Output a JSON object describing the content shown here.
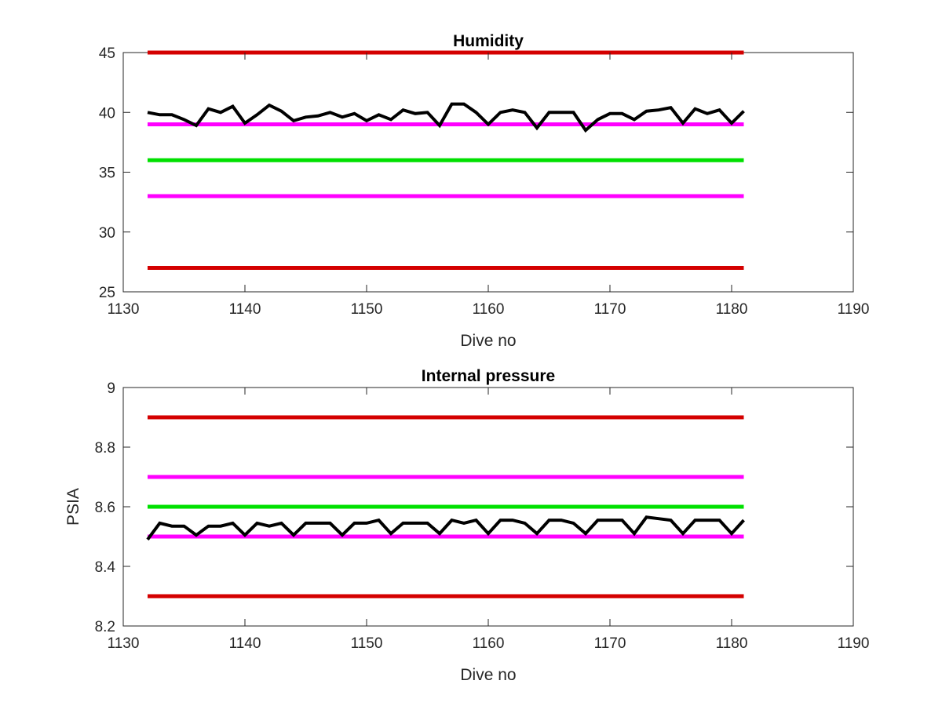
{
  "chart_data": [
    {
      "type": "line",
      "title": "Humidity",
      "xlabel": "Dive no",
      "ylabel": "",
      "xlim": [
        1130,
        1190
      ],
      "ylim": [
        25,
        45
      ],
      "xticks": [
        "1130",
        "1140",
        "1150",
        "1160",
        "1170",
        "1180",
        "1190"
      ],
      "yticks": [
        "25",
        "30",
        "35",
        "40",
        "45"
      ],
      "grid": false,
      "series": [
        {
          "color": "#d40000",
          "x": [
            1132,
            1181
          ],
          "y": [
            45,
            45
          ]
        },
        {
          "color": "#ff00ff",
          "x": [
            1132,
            1181
          ],
          "y": [
            39,
            39
          ]
        },
        {
          "color": "#00e000",
          "x": [
            1132,
            1181
          ],
          "y": [
            36,
            36
          ]
        },
        {
          "color": "#ff00ff",
          "x": [
            1132,
            1181
          ],
          "y": [
            33,
            33
          ]
        },
        {
          "color": "#d40000",
          "x": [
            1132,
            1181
          ],
          "y": [
            27,
            27
          ]
        },
        {
          "color": "#000000",
          "x": [
            1132,
            1133,
            1134,
            1135,
            1136,
            1137,
            1138,
            1139,
            1140,
            1141,
            1142,
            1143,
            1144,
            1145,
            1146,
            1147,
            1148,
            1149,
            1150,
            1151,
            1152,
            1153,
            1154,
            1155,
            1156,
            1157,
            1158,
            1159,
            1160,
            1161,
            1162,
            1163,
            1164,
            1165,
            1166,
            1167,
            1168,
            1169,
            1170,
            1171,
            1172,
            1173,
            1174,
            1175,
            1176,
            1177,
            1178,
            1179,
            1180,
            1181
          ],
          "y": [
            40,
            39.8,
            39.8,
            39.4,
            38.9,
            40.3,
            40,
            40.5,
            39.1,
            39.8,
            40.6,
            40.1,
            39.3,
            39.6,
            39.7,
            40,
            39.6,
            39.9,
            39.3,
            39.8,
            39.4,
            40.2,
            39.9,
            40,
            38.9,
            40.7,
            40.7,
            40,
            39,
            40,
            40.2,
            40,
            38.7,
            40,
            40,
            40,
            38.5,
            39.4,
            39.9,
            39.9,
            39.4,
            40.1,
            40.2,
            40.4,
            39.1,
            40.3,
            39.9,
            40.2,
            39.1,
            40.1
          ]
        }
      ]
    },
    {
      "type": "line",
      "title": "Internal pressure",
      "xlabel": "Dive no",
      "ylabel": "PSIA",
      "xlim": [
        1130,
        1190
      ],
      "ylim": [
        8.2,
        9
      ],
      "xticks": [
        "1130",
        "1140",
        "1150",
        "1160",
        "1170",
        "1180",
        "1190"
      ],
      "yticks": [
        "8.2",
        "8.4",
        "8.6",
        "8.8",
        "9"
      ],
      "grid": false,
      "series": [
        {
          "color": "#d40000",
          "x": [
            1132,
            1181
          ],
          "y": [
            8.9,
            8.9
          ]
        },
        {
          "color": "#ff00ff",
          "x": [
            1132,
            1181
          ],
          "y": [
            8.7,
            8.7
          ]
        },
        {
          "color": "#00e000",
          "x": [
            1132,
            1181
          ],
          "y": [
            8.6,
            8.6
          ]
        },
        {
          "color": "#ff00ff",
          "x": [
            1132,
            1181
          ],
          "y": [
            8.5,
            8.5
          ]
        },
        {
          "color": "#d40000",
          "x": [
            1132,
            1181
          ],
          "y": [
            8.3,
            8.3
          ]
        },
        {
          "color": "#000000",
          "x": [
            1132,
            1133,
            1134,
            1135,
            1136,
            1137,
            1138,
            1139,
            1140,
            1141,
            1142,
            1143,
            1144,
            1145,
            1146,
            1147,
            1148,
            1149,
            1150,
            1151,
            1152,
            1153,
            1154,
            1155,
            1156,
            1157,
            1158,
            1159,
            1160,
            1161,
            1162,
            1163,
            1164,
            1165,
            1166,
            1167,
            1168,
            1169,
            1170,
            1171,
            1172,
            1173,
            1174,
            1175,
            1176,
            1177,
            1178,
            1179,
            1180,
            1181
          ],
          "y": [
            8.49,
            8.545,
            8.535,
            8.535,
            8.505,
            8.535,
            8.535,
            8.545,
            8.505,
            8.545,
            8.535,
            8.545,
            8.505,
            8.545,
            8.545,
            8.545,
            8.505,
            8.545,
            8.545,
            8.555,
            8.51,
            8.545,
            8.545,
            8.545,
            8.51,
            8.555,
            8.545,
            8.555,
            8.51,
            8.555,
            8.555,
            8.545,
            8.51,
            8.555,
            8.555,
            8.545,
            8.51,
            8.555,
            8.555,
            8.555,
            8.51,
            8.565,
            8.56,
            8.555,
            8.51,
            8.555,
            8.555,
            8.555,
            8.51,
            8.555
          ]
        }
      ]
    }
  ]
}
